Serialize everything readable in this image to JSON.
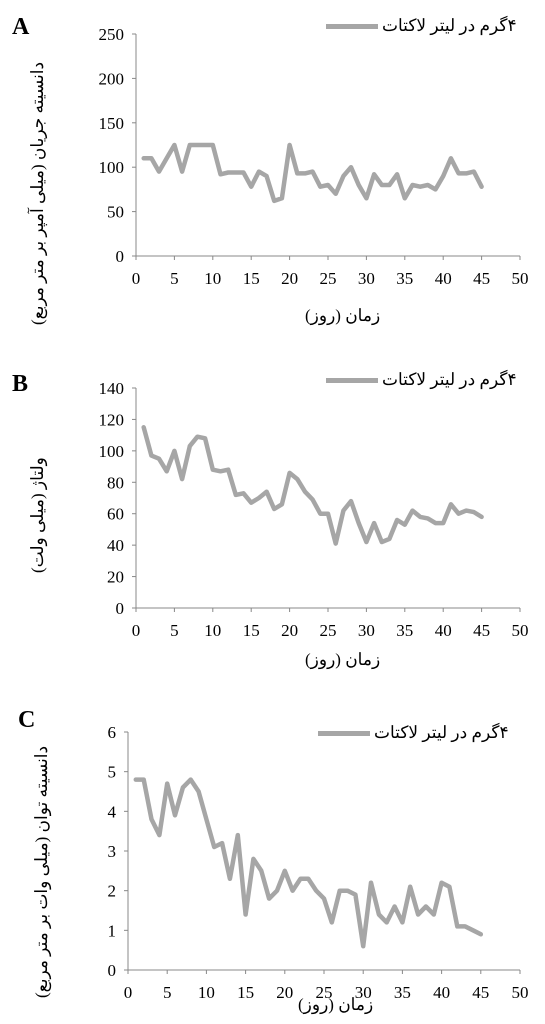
{
  "chart_data": [
    {
      "type": "line",
      "panel_label": "A",
      "ylabel": "دانسیته جریان (میلی آمپر بر متر مربع)",
      "xlabel": "زمان (روز)",
      "legend": "۴گرم در لیتر لاکتات",
      "xlim": [
        0,
        50
      ],
      "ylim": [
        0,
        250
      ],
      "xticks": [
        0,
        5,
        10,
        15,
        20,
        25,
        30,
        35,
        40,
        45,
        50
      ],
      "yticks": [
        0,
        50,
        100,
        150,
        200,
        250
      ],
      "line_color": "#a6a6a6",
      "series": [
        {
          "x": [
            1,
            2,
            3,
            4,
            5,
            6,
            7,
            8,
            9,
            10,
            11,
            12,
            13,
            14,
            15,
            16,
            17,
            18,
            19,
            20,
            21,
            22,
            23,
            24,
            25,
            26,
            27,
            28,
            29,
            30,
            31,
            32,
            33,
            34,
            35,
            36,
            37,
            38,
            39,
            40,
            41,
            42,
            43,
            44,
            45
          ],
          "values": [
            110,
            110,
            95,
            110,
            125,
            95,
            125,
            125,
            125,
            125,
            92,
            94,
            94,
            94,
            78,
            95,
            90,
            62,
            65,
            125,
            93,
            93,
            95,
            78,
            80,
            70,
            90,
            100,
            80,
            65,
            92,
            80,
            80,
            92,
            65,
            80,
            78,
            80,
            75,
            90,
            110,
            93,
            93,
            95,
            78
          ]
        }
      ]
    },
    {
      "type": "line",
      "panel_label": "B",
      "ylabel": "ولتاژ (میلی ولت)",
      "xlabel": "زمان (روز)",
      "legend": "۴گرم در لیتر لاکتات",
      "xlim": [
        0,
        50
      ],
      "ylim": [
        0,
        140
      ],
      "xticks": [
        0,
        5,
        10,
        15,
        20,
        25,
        30,
        35,
        40,
        45,
        50
      ],
      "yticks": [
        0,
        20,
        40,
        60,
        80,
        100,
        120,
        140
      ],
      "line_color": "#a6a6a6",
      "series": [
        {
          "x": [
            1,
            2,
            3,
            4,
            5,
            6,
            7,
            8,
            9,
            10,
            11,
            12,
            13,
            14,
            15,
            16,
            17,
            18,
            19,
            20,
            21,
            22,
            23,
            24,
            25,
            26,
            27,
            28,
            29,
            30,
            31,
            32,
            33,
            34,
            35,
            36,
            37,
            38,
            39,
            40,
            41,
            42,
            43,
            44,
            45
          ],
          "values": [
            115,
            97,
            95,
            87,
            100,
            82,
            103,
            109,
            108,
            88,
            87,
            88,
            72,
            73,
            67,
            70,
            74,
            63,
            66,
            86,
            82,
            74,
            69,
            60,
            60,
            41,
            62,
            68,
            54,
            42,
            54,
            42,
            44,
            56,
            53,
            62,
            58,
            57,
            54,
            54,
            66,
            60,
            62,
            61,
            58
          ]
        }
      ]
    },
    {
      "type": "line",
      "panel_label": "C",
      "ylabel": "دانسیته توان (میلی وات بر متر مربع)",
      "xlabel": "زمان (روز)",
      "legend": "۴گرم در لیتر لاکتات",
      "xlim": [
        0,
        50
      ],
      "ylim": [
        0,
        6
      ],
      "xticks": [
        0,
        5,
        10,
        15,
        20,
        25,
        30,
        35,
        40,
        45,
        50
      ],
      "yticks": [
        0,
        1,
        2,
        3,
        4,
        5,
        6
      ],
      "line_color": "#a6a6a6",
      "series": [
        {
          "x": [
            1,
            2,
            3,
            4,
            5,
            6,
            7,
            8,
            9,
            10,
            11,
            12,
            13,
            14,
            15,
            16,
            17,
            18,
            19,
            20,
            21,
            22,
            23,
            24,
            25,
            26,
            27,
            28,
            29,
            30,
            31,
            32,
            33,
            34,
            35,
            36,
            37,
            38,
            39,
            40,
            41,
            42,
            43,
            44,
            45
          ],
          "values": [
            4.8,
            4.8,
            3.8,
            3.4,
            4.7,
            3.9,
            4.6,
            4.8,
            4.5,
            3.8,
            3.1,
            3.2,
            2.3,
            3.4,
            1.4,
            2.8,
            2.5,
            1.8,
            2.0,
            2.5,
            2.0,
            2.3,
            2.3,
            2.0,
            1.8,
            1.2,
            2.0,
            2.0,
            1.9,
            0.6,
            2.2,
            1.4,
            1.2,
            1.6,
            1.2,
            2.1,
            1.4,
            1.6,
            1.4,
            2.2,
            2.1,
            1.1,
            1.1,
            1.0,
            0.9
          ]
        }
      ]
    }
  ]
}
